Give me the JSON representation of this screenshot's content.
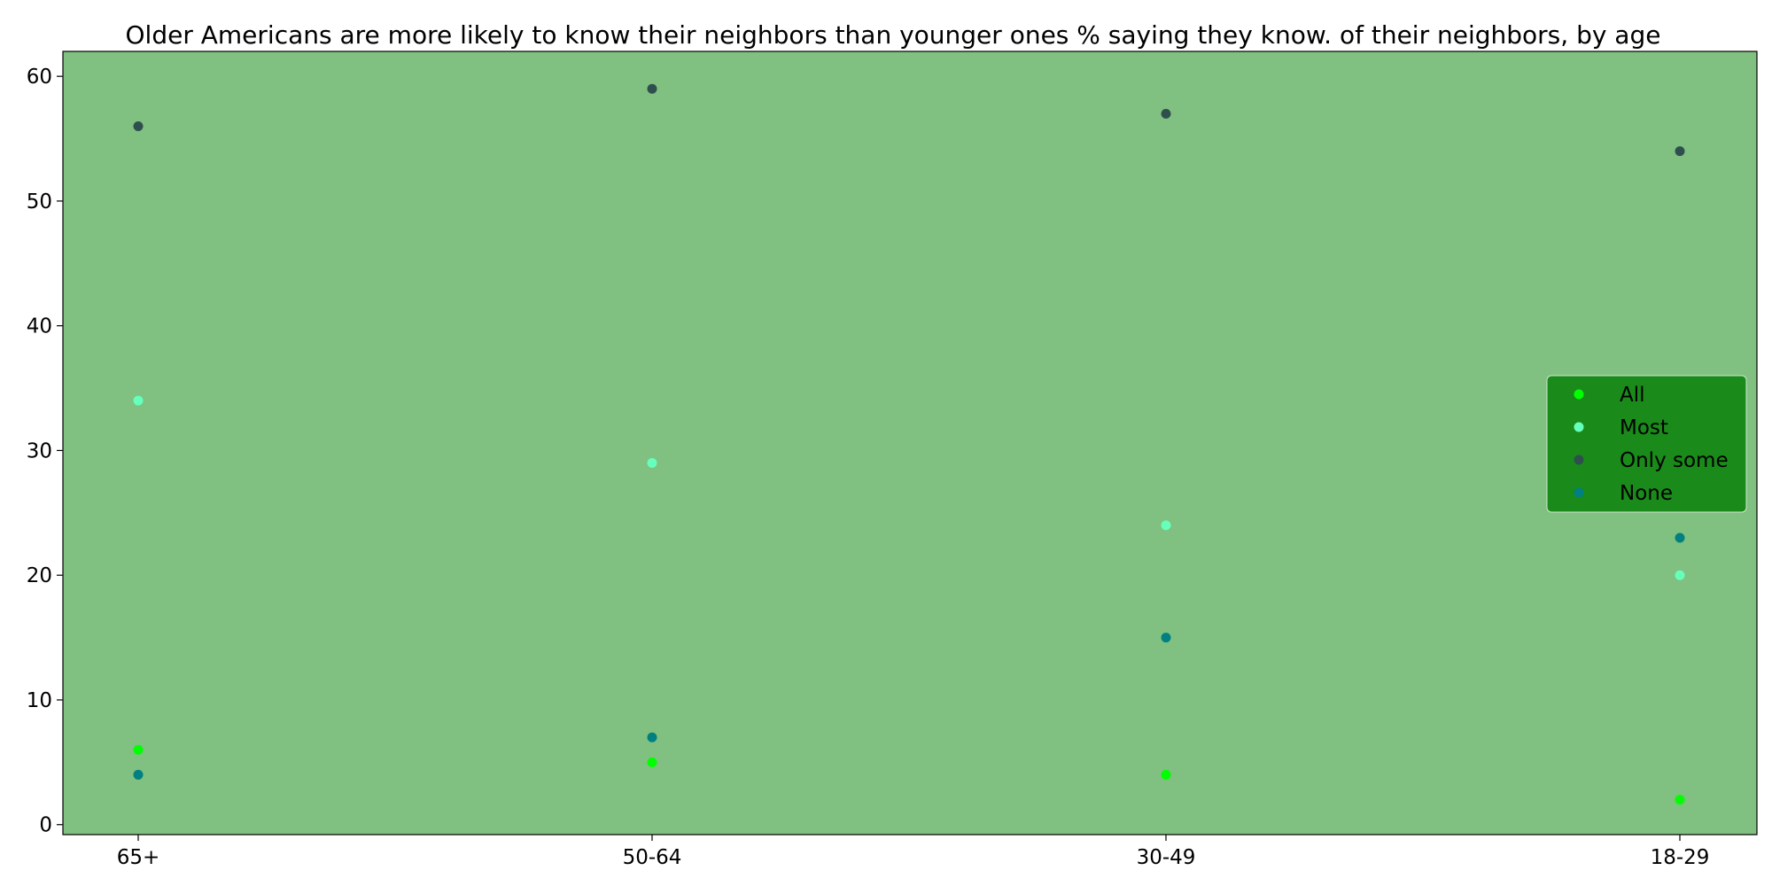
{
  "chart_data": {
    "type": "scatter",
    "title": "Older Americans are more likely to know their neighbors than younger ones % saying they know. of their neighbors, by age",
    "xlabel": "",
    "ylabel": "",
    "categories": [
      "65+",
      "50-64",
      "30-49",
      "18-29"
    ],
    "series": [
      {
        "name": "All",
        "values": [
          6,
          5,
          4,
          2
        ],
        "color": "#00ff00"
      },
      {
        "name": "Most",
        "values": [
          34,
          29,
          24,
          20
        ],
        "color": "#66ffbb"
      },
      {
        "name": "Only some",
        "values": [
          56,
          59,
          57,
          54
        ],
        "color": "#2f4f4f"
      },
      {
        "name": "None",
        "values": [
          4,
          7,
          15,
          23
        ],
        "color": "#008080"
      }
    ],
    "ylim": [
      -0.8,
      62
    ],
    "yticks": [
      0,
      10,
      20,
      30,
      40,
      50,
      60
    ],
    "grid": false,
    "legend_position": "center-right",
    "plot_background": "#80c080",
    "legend_background": "#1a8a1a"
  }
}
